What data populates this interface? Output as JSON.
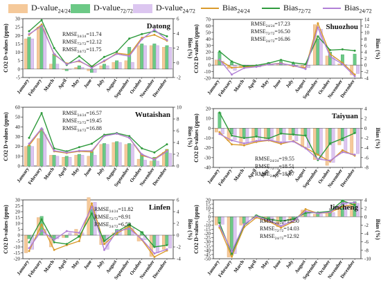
{
  "legend": [
    {
      "name": "D-value24/24",
      "base": "D-value",
      "sub": "24/24",
      "type": "bar",
      "color": "#f5c99a"
    },
    {
      "name": "D-value72/72",
      "base": "D-value",
      "sub": "72/72",
      "type": "bar",
      "color": "#6cc986"
    },
    {
      "name": "D-value24/72",
      "base": "D-value",
      "sub": "24/72",
      "type": "bar",
      "color": "#dcc6f0"
    },
    {
      "name": "Bias24/24",
      "base": "Bias",
      "sub": "24/24",
      "type": "line",
      "color": "#d99a2b"
    },
    {
      "name": "Bias72/72",
      "base": "Bias",
      "sub": "72/72",
      "type": "line",
      "color": "#2e9a3c"
    },
    {
      "name": "Bias24/72",
      "base": "Bias",
      "sub": "24/72",
      "type": "line",
      "color": "#b07fd6"
    }
  ],
  "chart_data": [
    {
      "type": "bar",
      "title": "Datong",
      "ylabel": "CO2 D-values (ppm)",
      "y2label": "Bias (%)",
      "ylim": [
        -5,
        30
      ],
      "yticks": [
        -5,
        0,
        5,
        10,
        15,
        20,
        25,
        30
      ],
      "y2lim": [
        -2,
        6
      ],
      "y2ticks": [
        -2,
        0,
        2,
        4,
        6
      ],
      "categories": [
        "January",
        "February",
        "March",
        "April",
        "May",
        "June",
        "July",
        "August",
        "September",
        "October",
        "November",
        "December"
      ],
      "series": [
        {
          "name": "D-value24/24",
          "values": [
            18,
            25,
            3,
            0,
            1,
            -1,
            2,
            4,
            5,
            14,
            14,
            13
          ]
        },
        {
          "name": "D-value72/72",
          "values": [
            19,
            26,
            9,
            -1,
            2,
            -2,
            3,
            5,
            13,
            15,
            15,
            14
          ]
        },
        {
          "name": "D-value24/72",
          "values": [
            18,
            24,
            3,
            0,
            1,
            -2,
            2,
            4,
            4,
            14,
            14,
            13
          ]
        },
        {
          "name": "Bias24/24",
          "values": [
            3.8,
            5.2,
            1.1,
            -0.1,
            0.2,
            -0.6,
            0.2,
            1.3,
            1.1,
            3.4,
            3.8,
            3.0
          ]
        },
        {
          "name": "Bias72/72",
          "values": [
            4.3,
            5.8,
            2.0,
            -0.3,
            0.9,
            -0.5,
            0.8,
            1.5,
            3.3,
            3.9,
            4.3,
            3.6
          ]
        },
        {
          "name": "Bias24/72",
          "values": [
            3.9,
            5.0,
            1.2,
            -0.2,
            0.3,
            -0.7,
            0.3,
            1.2,
            0.9,
            3.2,
            4.5,
            3.1
          ]
        }
      ],
      "annotations": [
        {
          "base": "RMSE",
          "sub": "24/24",
          "value": "=11.74"
        },
        {
          "base": "RMSE",
          "sub": "72/72",
          "value": "=12.12"
        },
        {
          "base": "RMSE",
          "sub": "24/72",
          "value": "=11.75"
        }
      ]
    },
    {
      "type": "bar",
      "title": "Shuozhou",
      "ylabel": "CO2 D-values (ppm)",
      "y2label": "Bias (%)",
      "ylim": [
        -20,
        70
      ],
      "yticks": [
        -20,
        -10,
        0,
        10,
        20,
        30,
        40,
        50,
        60,
        70
      ],
      "y2lim": [
        -4,
        14
      ],
      "y2ticks": [
        -4,
        -2,
        0,
        2,
        4,
        6,
        8,
        10,
        12,
        14
      ],
      "categories": [
        "January",
        "February",
        "March",
        "April",
        "May",
        "June",
        "July",
        "August",
        "September",
        "October",
        "November",
        "December"
      ],
      "series": [
        {
          "name": "D-value24/24",
          "values": [
            8,
            -5,
            -4,
            -2,
            1,
            2,
            0,
            -3,
            62,
            14,
            2,
            -15
          ]
        },
        {
          "name": "D-value72/72",
          "values": [
            20,
            5,
            -2,
            -1,
            4,
            6,
            3,
            1,
            40,
            20,
            16,
            17
          ]
        },
        {
          "name": "D-value24/72",
          "values": [
            6,
            -8,
            -4,
            -3,
            1,
            2,
            -1,
            -4,
            55,
            12,
            1,
            -13
          ]
        },
        {
          "name": "Bias24/24",
          "values": [
            1.5,
            -0.8,
            -0.5,
            -0.5,
            0.2,
            0.6,
            -0.3,
            -0.8,
            12.8,
            3.4,
            0.7,
            -2.9
          ]
        },
        {
          "name": "Bias72/72",
          "values": [
            4.2,
            1.1,
            -0.3,
            -0.1,
            0.6,
            1.6,
            0.7,
            0.3,
            8.8,
            4.6,
            4.8,
            4.4
          ]
        },
        {
          "name": "Bias24/72",
          "values": [
            1.7,
            -2.9,
            -0.9,
            -0.5,
            0.2,
            0.5,
            -0.1,
            -1.2,
            11.5,
            2.6,
            0.3,
            -3.4
          ]
        }
      ],
      "annotations": [
        {
          "base": "RMSE",
          "sub": "24/24",
          "value": "=17.23"
        },
        {
          "base": "RMSE",
          "sub": "72/72",
          "value": "=16.50"
        },
        {
          "base": "RMSE",
          "sub": "24/72",
          "value": "=16.86"
        }
      ]
    },
    {
      "type": "bar",
      "title": "Wutaishan",
      "ylabel": "CO2 D-values (ppm)",
      "y2label": "Bias (%)",
      "ylim": [
        0,
        60
      ],
      "yticks": [
        0,
        10,
        20,
        30,
        40,
        50,
        60
      ],
      "y2lim": [
        0,
        10
      ],
      "y2ticks": [
        0,
        2,
        4,
        6,
        8,
        10
      ],
      "categories": [
        "January",
        "February",
        "March",
        "April",
        "May",
        "June",
        "July",
        "August",
        "September",
        "October",
        "November",
        "December"
      ],
      "series": [
        {
          "name": "D-value24/24",
          "values": [
            20,
            28,
            11,
            9,
            11,
            10,
            22,
            24,
            22,
            7,
            5,
            14
          ]
        },
        {
          "name": "D-value72/72",
          "values": [
            21,
            38,
            11,
            10,
            12,
            15,
            23,
            25,
            23,
            12,
            9,
            17
          ]
        },
        {
          "name": "D-value24/72",
          "values": [
            20,
            32,
            10,
            9,
            11,
            11,
            22,
            24,
            22,
            6,
            5,
            13
          ]
        },
        {
          "name": "Bias24/24",
          "values": [
            3.5,
            6.3,
            2.5,
            2.2,
            2.5,
            2.4,
            5.2,
            5.5,
            4.8,
            1.8,
            1.2,
            2.7
          ]
        },
        {
          "name": "Bias72/72",
          "values": [
            4.8,
            9.0,
            3.0,
            2.5,
            3.2,
            3.8,
            5.3,
            5.6,
            5.1,
            3.0,
            2.3,
            3.7
          ]
        },
        {
          "name": "Bias24/72",
          "values": [
            3.8,
            6.4,
            2.6,
            2.3,
            2.6,
            2.6,
            5.1,
            5.5,
            4.8,
            2.0,
            1.1,
            2.5
          ]
        }
      ],
      "annotations": [
        {
          "base": "RMSE",
          "sub": "24/24",
          "value": "=16.57"
        },
        {
          "base": "RMSE",
          "sub": "72/72",
          "value": "=19.45"
        },
        {
          "base": "RMSE",
          "sub": "24/72",
          "value": "=16.88"
        }
      ]
    },
    {
      "type": "bar",
      "title": "Taiyuan",
      "ylabel": "CO2 D-values (ppm)",
      "y2label": "Bias (%)",
      "ylim": [
        -40,
        20
      ],
      "yticks": [
        -40,
        -30,
        -20,
        -10,
        0,
        10,
        20
      ],
      "y2lim": [
        -8,
        4
      ],
      "y2ticks": [
        -8,
        -6,
        -4,
        -2,
        0,
        2,
        4
      ],
      "categories": [
        "January",
        "February",
        "March",
        "April",
        "May",
        "June",
        "July",
        "August",
        "September",
        "October",
        "November",
        "December"
      ],
      "series": [
        {
          "name": "D-value24/24",
          "values": [
            -4,
            -13,
            -17,
            -14,
            -11,
            -15,
            -12,
            -19,
            -32,
            -38,
            -17,
            -27
          ]
        },
        {
          "name": "D-value72/72",
          "values": [
            16,
            -6,
            -9,
            -8,
            -10,
            -5,
            -6,
            -8,
            -27,
            -17,
            -13,
            -5
          ]
        },
        {
          "name": "D-value24/72",
          "values": [
            -6,
            -12,
            -16,
            -13,
            -12,
            -14,
            -13,
            -20,
            -31,
            -35,
            -25,
            -26
          ]
        },
        {
          "name": "Bias24/24",
          "values": [
            -0.8,
            -3.3,
            -3.5,
            -2.8,
            -2.5,
            -3.2,
            -2.6,
            -4.0,
            -5.4,
            -6.8,
            -4.5,
            -5.6
          ]
        },
        {
          "name": "Bias72/72",
          "values": [
            3.2,
            -1.5,
            -2.0,
            -1.7,
            -2.1,
            -1.1,
            -1.3,
            -1.5,
            -6.5,
            -3.1,
            -2.1,
            -1.0
          ]
        },
        {
          "name": "Bias24/72",
          "values": [
            -1.2,
            -2.5,
            -3.1,
            -2.6,
            -2.4,
            -2.9,
            -2.7,
            -4.1,
            -6.3,
            -6.6,
            -4.9,
            -5.4
          ]
        }
      ],
      "annotations": [
        {
          "base": "RMSE",
          "sub": "24/24",
          "value": "=19.55"
        },
        {
          "base": "RMSE",
          "sub": "72/72",
          "value": "=18.51"
        },
        {
          "base": "RMSE",
          "sub": "24/72",
          "value": "=18.07"
        }
      ]
    },
    {
      "type": "bar",
      "title": "Linfen",
      "ylabel": "CO2 D-values (ppm)",
      "y2label": "Bias (%)",
      "ylim": [
        -20,
        30
      ],
      "yticks": [
        -20,
        -15,
        -10,
        -5,
        0,
        5,
        10,
        15,
        20,
        25,
        30
      ],
      "y2lim": [
        -4,
        6
      ],
      "y2ticks": [
        -4,
        -2,
        0,
        2,
        4,
        6
      ],
      "categories": [
        "January",
        "February",
        "March",
        "April",
        "May",
        "June",
        "July",
        "August",
        "September",
        "October",
        "November",
        "December"
      ],
      "series": [
        {
          "name": "D-value24/24",
          "values": [
            -15,
            15,
            -10,
            -2,
            5,
            32,
            -8,
            2,
            8,
            -5,
            -18,
            -12
          ]
        },
        {
          "name": "D-value72/72",
          "values": [
            -3,
            16,
            -3,
            -2,
            -2,
            22,
            -5,
            5,
            10,
            3,
            -10,
            -8
          ]
        },
        {
          "name": "D-value24/72",
          "values": [
            -12,
            5,
            -3,
            2,
            2,
            28,
            -12,
            4,
            6,
            -4,
            -15,
            -11
          ]
        },
        {
          "name": "Bias24/24",
          "values": [
            -2.7,
            1.8,
            -2.5,
            -1.7,
            -1.0,
            5.4,
            -1.5,
            0.3,
            1.5,
            -0.8,
            -3.7,
            -2.6
          ]
        },
        {
          "name": "Bias72/72",
          "values": [
            -1.2,
            2.7,
            -1.2,
            -1.5,
            -0.2,
            3.7,
            -1.0,
            0.6,
            1.8,
            0.5,
            -2.0,
            -1.7
          ]
        },
        {
          "name": "Bias24/72",
          "values": [
            -2.2,
            0.8,
            -0.8,
            0.7,
            0.4,
            4.8,
            -2.5,
            0.7,
            1.1,
            -0.7,
            -3.1,
            -2.4
          ]
        }
      ],
      "annotations": [
        {
          "base": "RMSE",
          "sub": "24/24",
          "value": "=11.82"
        },
        {
          "base": "RMSE",
          "sub": "72/72",
          "value": "=8.91"
        },
        {
          "base": "RMSE",
          "sub": "24/72",
          "value": "=6.53"
        }
      ]
    },
    {
      "type": "bar",
      "title": "Jincheng",
      "ylabel": "CO2 D-values (ppm)",
      "y2label": "Bias (%)",
      "ylim": [
        -50,
        20
      ],
      "yticks": [
        -50,
        -45,
        -40,
        -35,
        -30,
        -25,
        -20,
        -15,
        -10,
        -5,
        0,
        5,
        10,
        15,
        20
      ],
      "y2lim": [
        -10,
        4
      ],
      "y2ticks": [
        -10,
        -8,
        -6,
        -4,
        -2,
        0,
        2,
        4
      ],
      "categories": [
        "January",
        "February",
        "March",
        "April",
        "May",
        "June",
        "July",
        "August",
        "September",
        "October",
        "November",
        "December"
      ],
      "series": [
        {
          "name": "D-value24/24",
          "values": [
            -10,
            -48,
            -10,
            -2,
            -6,
            -12,
            -5,
            8,
            3,
            4,
            12,
            14
          ]
        },
        {
          "name": "D-value72/72",
          "values": [
            -8,
            -46,
            -8,
            2,
            -3,
            -5,
            -3,
            4,
            5,
            6,
            20,
            18
          ]
        },
        {
          "name": "D-value24/72",
          "values": [
            -9,
            -44,
            -9,
            0,
            -5,
            -11,
            -4,
            6,
            3,
            5,
            17,
            16
          ]
        },
        {
          "name": "Bias24/24",
          "values": [
            -2.6,
            -9.5,
            -2.5,
            -0.2,
            -1.1,
            -2.6,
            -1.2,
            1.8,
            0.8,
            1.0,
            2.4,
            3.0
          ]
        },
        {
          "name": "Bias72/72",
          "values": [
            -1.5,
            -8.8,
            -2.0,
            0.3,
            -0.6,
            -1.0,
            -0.6,
            0.9,
            1.0,
            1.3,
            3.8,
            2.8
          ]
        },
        {
          "name": "Bias24/72",
          "values": [
            -2.2,
            -8.3,
            -1.8,
            0.1,
            -0.9,
            -2.2,
            -1.0,
            1.3,
            0.8,
            1.1,
            3.2,
            3.4
          ]
        }
      ],
      "annotations": [
        {
          "base": "RMSE",
          "sub": "24/24",
          "value": "=15.50"
        },
        {
          "base": "RMSE",
          "sub": "72/72",
          "value": "=14.03"
        },
        {
          "base": "RMSE",
          "sub": "24/72",
          "value": "=12.92"
        }
      ]
    }
  ]
}
